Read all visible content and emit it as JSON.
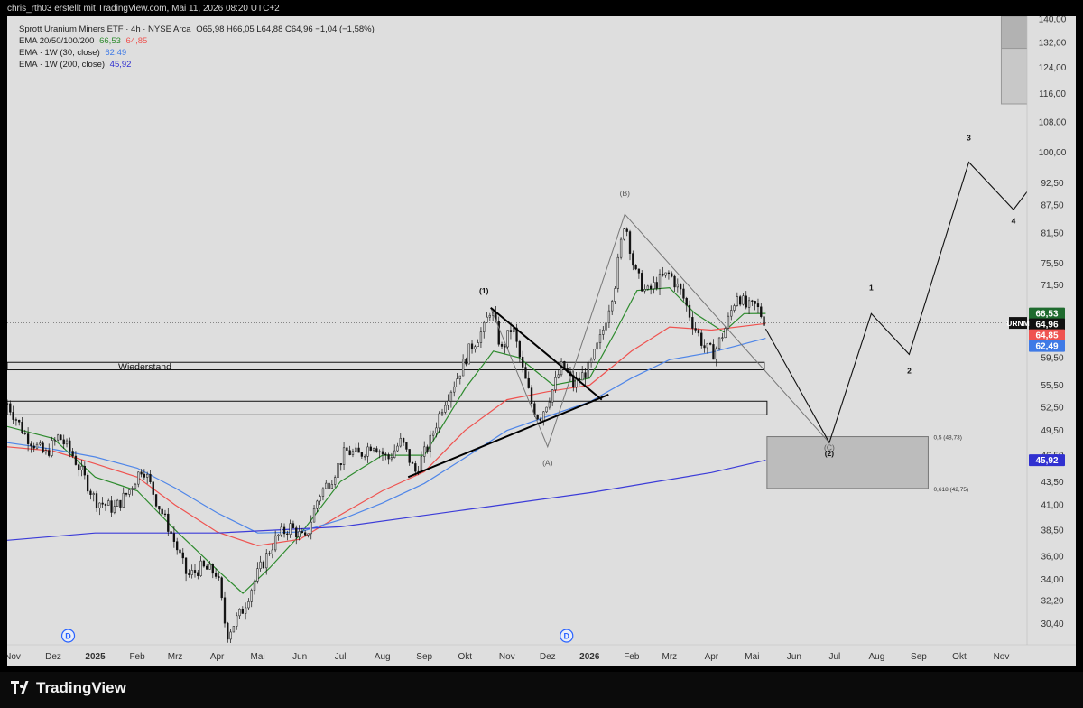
{
  "header": {
    "attribution": "chris_rth03 erstellt mit TradingView.com, Mai 11, 2026 08:20 UTC+2"
  },
  "legend": {
    "symbol_line": "Sprott Uranium Miners ETF · 4h · NYSE Arca",
    "ohlc": "O65,98  H66,05  L64,88  C64,96  −1,04 (−1,58%)",
    "ema_group": "EMA 20/50/100/200",
    "ema_group_v1": "66,53",
    "ema_group_v2": "64,85",
    "ema_30w": "EMA · 1W (30, close)",
    "ema_30w_v": "62,49",
    "ema_200w": "EMA · 1W (200, close)",
    "ema_200w_v": "45,92"
  },
  "footer": {
    "brand": "TradingView"
  },
  "colors": {
    "background": "#dedede",
    "ema20": "#2e8b2e",
    "ema50": "#ef5350",
    "ema100": "#4f86e8",
    "ema200w": "#3c3cd8",
    "candle": "#111111",
    "box_fill": "#bcbcbc"
  },
  "chart_data": {
    "type": "line",
    "symbol": "URNM",
    "timeframe": "4h",
    "y_scale": "log",
    "ylim": [
      28.8,
      141
    ],
    "x_range": [
      "2024-10-28",
      "2026-11-20"
    ],
    "y_ticks": [
      "140,00",
      "132,00",
      "124,00",
      "116,00",
      "108,00",
      "100,00",
      "92,50",
      "87,50",
      "81,50",
      "75,50",
      "71,50",
      "66,50",
      "59,50",
      "55,50",
      "52,50",
      "49,50",
      "46,50",
      "43,50",
      "41,00",
      "38,50",
      "36,00",
      "34,00",
      "32,20",
      "30,40"
    ],
    "y_tick_values": [
      140,
      132,
      124,
      116,
      108,
      100,
      92.5,
      87.5,
      81.5,
      75.5,
      71.5,
      66.5,
      59.5,
      55.5,
      52.5,
      49.5,
      46.5,
      43.5,
      41,
      38.5,
      36,
      34,
      32.2,
      30.4
    ],
    "x_ticks": [
      {
        "date": "2024-11-01",
        "label": "Nov"
      },
      {
        "date": "2024-12-01",
        "label": "Dez"
      },
      {
        "date": "2025-01-01",
        "label": "2025"
      },
      {
        "date": "2025-02-01",
        "label": "Feb"
      },
      {
        "date": "2025-03-01",
        "label": "Mrz"
      },
      {
        "date": "2025-04-01",
        "label": "Apr"
      },
      {
        "date": "2025-05-01",
        "label": "Mai"
      },
      {
        "date": "2025-06-01",
        "label": "Jun"
      },
      {
        "date": "2025-07-01",
        "label": "Jul"
      },
      {
        "date": "2025-08-01",
        "label": "Aug"
      },
      {
        "date": "2025-09-01",
        "label": "Sep"
      },
      {
        "date": "2025-10-01",
        "label": "Okt"
      },
      {
        "date": "2025-11-01",
        "label": "Nov"
      },
      {
        "date": "2025-12-01",
        "label": "Dez"
      },
      {
        "date": "2026-01-01",
        "label": "2026"
      },
      {
        "date": "2026-02-01",
        "label": "Feb"
      },
      {
        "date": "2026-03-01",
        "label": "Mrz"
      },
      {
        "date": "2026-04-01",
        "label": "Apr"
      },
      {
        "date": "2026-05-01",
        "label": "Mai"
      },
      {
        "date": "2026-06-01",
        "label": "Jun"
      },
      {
        "date": "2026-07-01",
        "label": "Jul"
      },
      {
        "date": "2026-08-01",
        "label": "Aug"
      },
      {
        "date": "2026-09-01",
        "label": "Sep"
      },
      {
        "date": "2026-10-01",
        "label": "Okt"
      },
      {
        "date": "2026-11-01",
        "label": "Nov"
      }
    ],
    "price_path": [
      [
        "2024-10-28",
        53.0
      ],
      [
        "2024-11-10",
        49.0
      ],
      [
        "2024-11-25",
        46.5
      ],
      [
        "2024-12-05",
        48.8
      ],
      [
        "2024-12-15",
        46.6
      ],
      [
        "2025-01-01",
        41.5
      ],
      [
        "2025-01-15",
        40.6
      ],
      [
        "2025-01-25",
        42.3
      ],
      [
        "2025-02-05",
        45.2
      ],
      [
        "2025-02-15",
        41.5
      ],
      [
        "2025-02-25",
        38.5
      ],
      [
        "2025-03-10",
        34.2
      ],
      [
        "2025-03-20",
        35.0
      ],
      [
        "2025-04-01",
        34.5
      ],
      [
        "2025-04-08",
        29.5
      ],
      [
        "2025-04-20",
        31.5
      ],
      [
        "2025-05-01",
        34.5
      ],
      [
        "2025-05-15",
        37.8
      ],
      [
        "2025-05-25",
        38.8
      ],
      [
        "2025-06-05",
        37.5
      ],
      [
        "2025-06-15",
        42.0
      ],
      [
        "2025-06-25",
        44.0
      ],
      [
        "2025-07-05",
        47.0
      ],
      [
        "2025-07-15",
        46.5
      ],
      [
        "2025-07-25",
        48.0
      ],
      [
        "2025-08-05",
        46.0
      ],
      [
        "2025-08-15",
        48.2
      ],
      [
        "2025-08-25",
        44.5
      ],
      [
        "2025-09-05",
        48.0
      ],
      [
        "2025-09-15",
        53.0
      ],
      [
        "2025-09-25",
        56.5
      ],
      [
        "2025-10-05",
        61.0
      ],
      [
        "2025-10-15",
        64.0
      ],
      [
        "2025-10-20",
        67.5
      ],
      [
        "2025-10-28",
        60.5
      ],
      [
        "2025-11-05",
        64.5
      ],
      [
        "2025-11-12",
        58.0
      ],
      [
        "2025-11-20",
        52.5
      ],
      [
        "2025-11-25",
        51.0
      ],
      [
        "2025-12-05",
        55.0
      ],
      [
        "2025-12-12",
        58.5
      ],
      [
        "2025-12-20",
        55.5
      ],
      [
        "2026-01-01",
        58.0
      ],
      [
        "2026-01-10",
        63.0
      ],
      [
        "2026-01-20",
        72.0
      ],
      [
        "2026-01-27",
        84.5
      ],
      [
        "2026-02-03",
        74.0
      ],
      [
        "2026-02-12",
        70.0
      ],
      [
        "2026-02-22",
        72.5
      ],
      [
        "2026-03-01",
        73.5
      ],
      [
        "2026-03-10",
        70.0
      ],
      [
        "2026-03-18",
        65.0
      ],
      [
        "2026-03-27",
        61.0
      ],
      [
        "2026-04-03",
        60.2
      ],
      [
        "2026-04-12",
        64.5
      ],
      [
        "2026-04-20",
        70.0
      ],
      [
        "2026-04-27",
        67.5
      ],
      [
        "2026-05-04",
        67.8
      ],
      [
        "2026-05-11",
        64.96
      ]
    ],
    "series": [
      {
        "name": "EMA 20",
        "color": "#2e8b2e",
        "points": [
          [
            "2024-10-28",
            50.0
          ],
          [
            "2024-12-01",
            48.5
          ],
          [
            "2025-01-01",
            44.0
          ],
          [
            "2025-02-01",
            42.5
          ],
          [
            "2025-03-01",
            38.5
          ],
          [
            "2025-04-01",
            34.8
          ],
          [
            "2025-04-20",
            32.8
          ],
          [
            "2025-05-10",
            35.0
          ],
          [
            "2025-06-01",
            38.0
          ],
          [
            "2025-07-01",
            43.5
          ],
          [
            "2025-08-01",
            46.5
          ],
          [
            "2025-09-01",
            46.5
          ],
          [
            "2025-10-01",
            55.0
          ],
          [
            "2025-10-22",
            60.5
          ],
          [
            "2025-11-10",
            59.5
          ],
          [
            "2025-12-05",
            55.5
          ],
          [
            "2026-01-01",
            56.5
          ],
          [
            "2026-01-20",
            63.5
          ],
          [
            "2026-02-05",
            70.5
          ],
          [
            "2026-03-01",
            71.0
          ],
          [
            "2026-03-20",
            66.5
          ],
          [
            "2026-04-10",
            63.5
          ],
          [
            "2026-04-25",
            66.5
          ],
          [
            "2026-05-11",
            66.53
          ]
        ]
      },
      {
        "name": "EMA 50",
        "color": "#ef5350",
        "points": [
          [
            "2024-10-28",
            47.5
          ],
          [
            "2024-12-01",
            47.0
          ],
          [
            "2025-01-01",
            45.5
          ],
          [
            "2025-02-01",
            44.0
          ],
          [
            "2025-03-01",
            41.0
          ],
          [
            "2025-04-01",
            38.3
          ],
          [
            "2025-05-01",
            37.0
          ],
          [
            "2025-06-01",
            37.6
          ],
          [
            "2025-07-01",
            40.0
          ],
          [
            "2025-08-01",
            42.5
          ],
          [
            "2025-09-01",
            44.6
          ],
          [
            "2025-10-01",
            49.5
          ],
          [
            "2025-11-01",
            53.5
          ],
          [
            "2025-12-01",
            54.6
          ],
          [
            "2026-01-01",
            55.5
          ],
          [
            "2026-02-01",
            60.5
          ],
          [
            "2026-03-01",
            64.3
          ],
          [
            "2026-04-01",
            63.8
          ],
          [
            "2026-05-11",
            64.85
          ]
        ]
      },
      {
        "name": "EMA 100",
        "color": "#4f86e8",
        "points": [
          [
            "2024-10-28",
            48.0
          ],
          [
            "2024-12-01",
            47.2
          ],
          [
            "2025-01-01",
            46.3
          ],
          [
            "2025-02-01",
            45.0
          ],
          [
            "2025-03-01",
            42.8
          ],
          [
            "2025-04-01",
            40.2
          ],
          [
            "2025-05-01",
            38.2
          ],
          [
            "2025-06-01",
            38.3
          ],
          [
            "2025-07-01",
            39.5
          ],
          [
            "2025-08-01",
            41.2
          ],
          [
            "2025-09-01",
            43.3
          ],
          [
            "2025-10-01",
            46.2
          ],
          [
            "2025-11-01",
            49.5
          ],
          [
            "2025-12-01",
            51.3
          ],
          [
            "2026-01-01",
            53.2
          ],
          [
            "2026-02-01",
            56.5
          ],
          [
            "2026-03-01",
            59.2
          ],
          [
            "2026-04-01",
            60.3
          ],
          [
            "2026-05-11",
            62.49
          ]
        ]
      },
      {
        "name": "EMA 200",
        "color": "#3c3cd8",
        "points": [
          [
            "2024-10-28",
            37.5
          ],
          [
            "2025-01-01",
            38.2
          ],
          [
            "2025-04-01",
            38.2
          ],
          [
            "2025-07-01",
            38.8
          ],
          [
            "2025-10-01",
            40.5
          ],
          [
            "2026-01-01",
            42.3
          ],
          [
            "2026-04-01",
            44.5
          ],
          [
            "2026-05-11",
            45.92
          ]
        ]
      }
    ],
    "projection": [
      [
        "2026-05-11",
        64.0
      ],
      [
        "2026-06-27",
        48.0
      ],
      [
        "2026-07-28",
        66.5
      ],
      [
        "2026-08-25",
        60.0
      ],
      [
        "2026-10-08",
        97.5
      ],
      [
        "2026-11-10",
        86.5
      ],
      [
        "2026-11-20",
        90.5
      ]
    ],
    "correction_path": [
      [
        "2025-10-20",
        67.5
      ],
      [
        "2025-12-01",
        47.5
      ],
      [
        "2026-01-27",
        85.5
      ],
      [
        "2026-06-27",
        48.0
      ]
    ],
    "triangle": [
      {
        "from": [
          "2025-10-20",
          67.5
        ],
        "to": [
          "2026-01-10",
          53.5
        ]
      },
      {
        "from": [
          "2025-08-20",
          44.0
        ],
        "to": [
          "2026-01-15",
          54.2
        ]
      }
    ],
    "zones": [
      {
        "label": "Wiederstand",
        "from": "2024-10-28",
        "to": "2026-05-10",
        "ylow": 57.7,
        "yhigh": 58.8
      },
      {
        "label": "",
        "from": "2024-10-28",
        "to": "2026-05-12",
        "ylow": 51.5,
        "yhigh": 53.3
      }
    ],
    "fib_box": {
      "from": "2026-05-12",
      "to": "2026-09-08",
      "ylow": 42.75,
      "yhigh": 48.73,
      "label_top": "0,5 (48,73)",
      "label_bottom": "0,618 (42,75)"
    },
    "target_box": {
      "from": "2026-11-01",
      "to": "2026-12-12",
      "ylow": 113,
      "yhigh": 141,
      "split": 130,
      "label": "(3)"
    },
    "wave_labels": [
      {
        "text": "(1)",
        "date": "2025-10-15",
        "price": 70.0,
        "bold": true
      },
      {
        "text": "(A)",
        "date": "2025-12-01",
        "price": 45.3,
        "bold": false
      },
      {
        "text": "(B)",
        "date": "2026-01-27",
        "price": 89.5,
        "bold": false
      },
      {
        "text": "(C)",
        "date": "2026-06-27",
        "price": 47.1,
        "bold": false
      },
      {
        "text": "(2)",
        "date": "2026-06-27",
        "price": 46.4,
        "bold": true
      },
      {
        "text": "1",
        "date": "2026-07-28",
        "price": 70.5,
        "bold": true
      },
      {
        "text": "2",
        "date": "2026-08-25",
        "price": 57.2,
        "bold": true
      },
      {
        "text": "3",
        "date": "2026-10-08",
        "price": 103.0,
        "bold": true
      },
      {
        "text": "4",
        "date": "2026-11-10",
        "price": 83.5,
        "bold": true
      }
    ],
    "dividends": [
      {
        "date": "2024-12-12",
        "label": "D"
      },
      {
        "date": "2025-12-15",
        "label": "D"
      }
    ],
    "zone_text": "Wiederstand",
    "last_price": 64.96,
    "price_labels": [
      {
        "text": "66,53",
        "value": 66.53,
        "color": "#1f6b2f"
      },
      {
        "text": "64,96",
        "value": 64.96,
        "color": "#111111"
      },
      {
        "text": "64,85",
        "value": 64.85,
        "color": "#ef5350"
      },
      {
        "text": "62,49",
        "value": 62.49,
        "color": "#3f7ae6"
      },
      {
        "text": "45,92",
        "value": 45.92,
        "color": "#3030d0"
      }
    ]
  }
}
